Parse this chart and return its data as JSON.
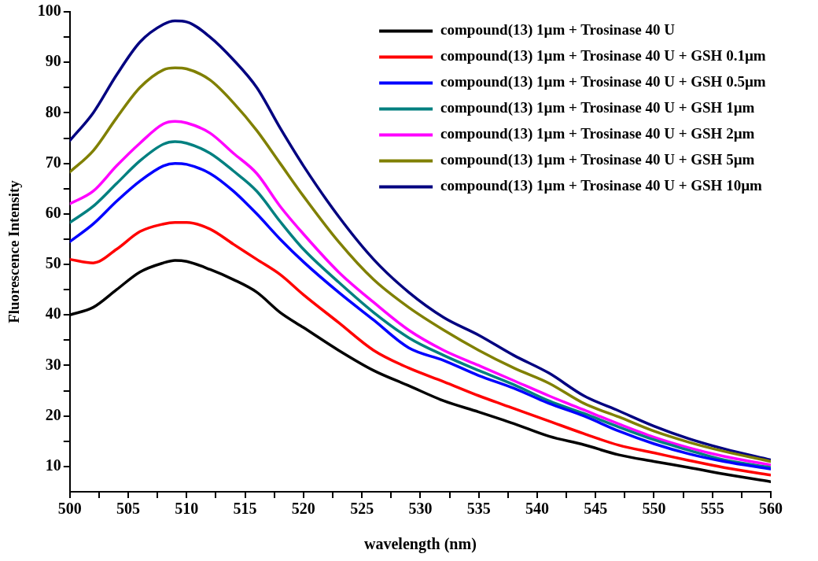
{
  "chart_data": {
    "type": "line",
    "xlabel": "wavelength (nm)",
    "ylabel": "Fluorescence Intensity",
    "x": [
      500,
      502,
      504,
      506,
      508,
      509,
      510,
      512,
      514,
      516,
      518,
      520,
      523,
      526,
      529,
      532,
      535,
      538,
      541,
      544,
      547,
      550,
      553,
      556,
      560
    ],
    "series": [
      {
        "name": "compound(13) 1µm + Trosinase 40 U",
        "color": "#000000",
        "values": [
          40,
          41.5,
          45,
          48.5,
          50.3,
          50.8,
          50.6,
          49,
          47,
          44.5,
          40.5,
          37.5,
          33,
          29,
          26,
          23,
          20.8,
          18.5,
          16,
          14.3,
          12.3,
          11,
          9.8,
          8.5,
          7
        ]
      },
      {
        "name": "compound(13) 1µm + Trosinase 40 U + GSH 0.1µm",
        "color": "#ff0000",
        "values": [
          51,
          50.3,
          53,
          56.5,
          58,
          58.3,
          58.3,
          57,
          54,
          51,
          48,
          44,
          38.5,
          33,
          29.5,
          26.8,
          24,
          21.5,
          19,
          16.5,
          14.2,
          12.7,
          11.2,
          9.8,
          8.3
        ]
      },
      {
        "name": "compound(13) 1µm + Trosinase 40 U + GSH 0.5µm",
        "color": "#0000ff",
        "values": [
          54.5,
          58,
          62.5,
          66.5,
          69.5,
          70,
          69.8,
          68,
          64.5,
          60,
          55,
          50.5,
          44.5,
          39,
          33.5,
          31,
          28,
          25.5,
          22.5,
          20,
          17,
          14.5,
          12.5,
          11,
          9.5
        ]
      },
      {
        "name": "compound(13) 1µm + Trosinase 40 U + GSH 1µm",
        "color": "#008080",
        "values": [
          58.3,
          61.5,
          66,
          70.5,
          73.8,
          74.3,
          74,
          72,
          68.5,
          64.5,
          58.5,
          53,
          46.5,
          40.5,
          35.5,
          32,
          29,
          26.2,
          23,
          20.5,
          17.8,
          15.3,
          13.2,
          11.3,
          9.8
        ]
      },
      {
        "name": "compound(13) 1µm + Trosinase 40 U + GSH 2µm",
        "color": "#ff00ff",
        "values": [
          62,
          64.5,
          69.5,
          74,
          77.8,
          78.3,
          78,
          76,
          72,
          68,
          61.5,
          56,
          48.5,
          42.5,
          37,
          33,
          30,
          27,
          24,
          21.2,
          18.4,
          15.8,
          13.7,
          12,
          10.3
        ]
      },
      {
        "name": "compound(13) 1µm + Trosinase 40 U + GSH 5µm",
        "color": "#808000",
        "values": [
          68.3,
          72.5,
          79,
          85,
          88.5,
          88.9,
          88.7,
          86.5,
          82,
          76.5,
          70,
          63.5,
          54.5,
          47,
          41.5,
          37,
          33,
          29.5,
          26.5,
          22.5,
          19.8,
          17,
          14.8,
          13,
          11
        ]
      },
      {
        "name": "compound(13) 1µm + Trosinase 40 U + GSH 10µm",
        "color": "#000080",
        "values": [
          74.5,
          80,
          87.5,
          94,
          97.5,
          98.2,
          98,
          95,
          90.5,
          85,
          77,
          69.5,
          59.5,
          51,
          44.5,
          39.5,
          36,
          32,
          28.5,
          24,
          21,
          18,
          15.5,
          13.5,
          11.3
        ]
      }
    ],
    "xlim": [
      500,
      560
    ],
    "xticks": [
      500,
      {
        "value": 502.5,
        "label": null
      },
      505,
      {
        "value": 507.5,
        "label": null
      },
      510,
      {
        "value": 512.5,
        "label": null
      },
      515,
      {
        "value": 517.5,
        "label": null
      },
      520,
      {
        "value": 522.5,
        "label": null
      },
      525,
      {
        "value": 527.5,
        "label": null
      },
      530,
      {
        "value": 532.5,
        "label": null
      },
      535,
      {
        "value": 537.5,
        "label": null
      },
      540,
      {
        "value": 542.5,
        "label": null
      },
      545,
      {
        "value": 547.5,
        "label": null
      },
      550,
      {
        "value": 552.5,
        "label": null
      },
      555,
      {
        "value": 557.5,
        "label": null
      },
      560
    ],
    "ylim": [
      5,
      100
    ],
    "yticks": [
      10,
      {
        "value": 15,
        "label": null
      },
      20,
      {
        "value": 25,
        "label": null
      },
      30,
      {
        "value": 35,
        "label": null
      },
      40,
      {
        "value": 45,
        "label": null
      },
      50,
      {
        "value": 55,
        "label": null
      },
      60,
      {
        "value": 65,
        "label": null
      },
      70,
      {
        "value": 75,
        "label": null
      },
      80,
      {
        "value": 85,
        "label": null
      },
      90,
      {
        "value": 95,
        "label": null
      },
      100
    ],
    "grid": false,
    "legend": "top right",
    "marker": "none",
    "line_style": "solid"
  }
}
